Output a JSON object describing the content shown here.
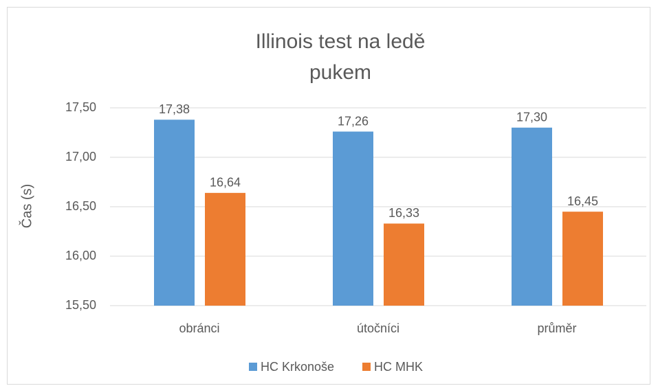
{
  "chart_data": {
    "type": "bar",
    "title": "Illinois test na ledě pukem",
    "y_label": "Čas (s)",
    "categories": [
      "obránci",
      "útočníci",
      "průměr"
    ],
    "series": [
      {
        "name": "HC Krkonoše",
        "color": "#5b9bd5",
        "values": [
          17.38,
          17.26,
          17.3
        ],
        "value_labels": [
          "17,38",
          "17,26",
          "17,30"
        ]
      },
      {
        "name": "HC MHK",
        "color": "#ed7d31",
        "values": [
          16.64,
          16.33,
          16.45
        ],
        "value_labels": [
          "16,64",
          "16,33",
          "16,45"
        ]
      }
    ],
    "ylim": [
      15.5,
      17.5
    ],
    "yticks": [
      {
        "value": 15.5,
        "label": "15,50"
      },
      {
        "value": 16,
        "label": "16,00"
      },
      {
        "value": 16.5,
        "label": "16,50"
      },
      {
        "value": 17,
        "label": "17,00"
      },
      {
        "value": 17.5,
        "label": "17,50"
      }
    ],
    "grid": true,
    "legend": "bottom"
  }
}
